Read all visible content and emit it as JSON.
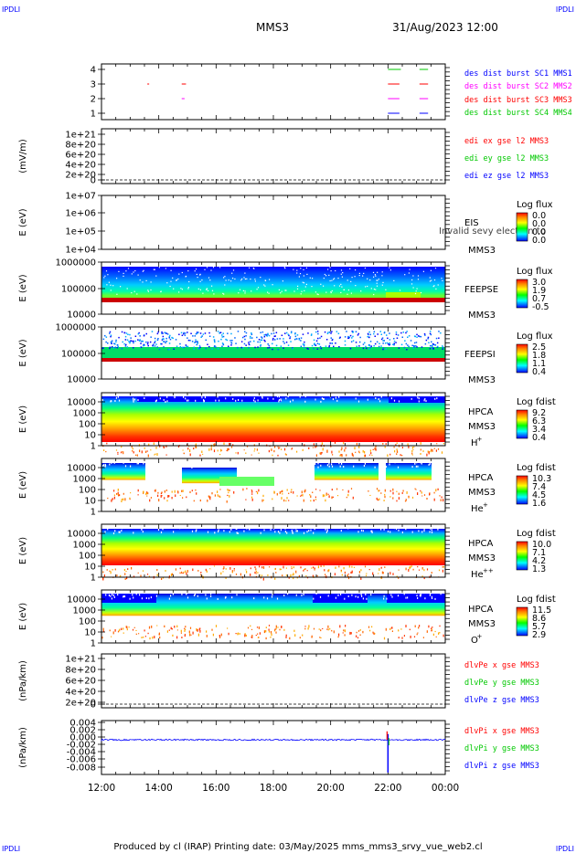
{
  "corner_tag": "IPDLI",
  "header": {
    "mission": "MMS3",
    "datetime": "31/Aug/2023 12:00"
  },
  "footer": "Produced by cl (IRAP)   Printing date: 03/May/2025   mms_mms3_srvy_vue_web2.cl",
  "x_ticks": [
    "12:00",
    "14:00",
    "16:00",
    "18:00",
    "20:00",
    "22:00",
    "00:00"
  ],
  "colors": {
    "blue": "#0000ff",
    "green": "#00c800",
    "red": "#ff0000",
    "magenta": "#ff00ff"
  },
  "chart_data": [
    {
      "id": "burst",
      "type": "scatter",
      "y_ticks": [
        "4",
        "3",
        "2",
        "1"
      ],
      "legend": [
        {
          "label": "des dist burst SC1 MMS1",
          "color": "#0000ff"
        },
        {
          "label": "des dist burst SC2 MMS2",
          "color": "#ff00ff"
        },
        {
          "label": "des dist burst SC3 MMS3",
          "color": "#ff0000"
        },
        {
          "label": "des dist burst SC4 MMS4",
          "color": "#00c800"
        }
      ],
      "segments": [
        {
          "sc": 4,
          "start_hour": 22.0,
          "end_hour": 22.45
        },
        {
          "sc": 4,
          "start_hour": 23.1,
          "end_hour": 23.4
        },
        {
          "sc": 3,
          "start_hour": 13.6,
          "end_hour": 13.65
        },
        {
          "sc": 3,
          "start_hour": 14.8,
          "end_hour": 14.95
        },
        {
          "sc": 3,
          "start_hour": 22.0,
          "end_hour": 22.4
        },
        {
          "sc": 3,
          "start_hour": 23.1,
          "end_hour": 23.4
        },
        {
          "sc": 2,
          "start_hour": 14.8,
          "end_hour": 14.9
        },
        {
          "sc": 2,
          "start_hour": 22.0,
          "end_hour": 22.4
        },
        {
          "sc": 2,
          "start_hour": 23.1,
          "end_hour": 23.4
        },
        {
          "sc": 1,
          "start_hour": 22.0,
          "end_hour": 22.4
        },
        {
          "sc": 1,
          "start_hour": 23.1,
          "end_hour": 23.4
        }
      ]
    },
    {
      "id": "edi",
      "type": "line",
      "ylabel": "(mV/m)",
      "y_ticks": [
        "1e+21",
        "8e+20",
        "6e+20",
        "4e+20",
        "2e+20",
        "0"
      ],
      "ylim": [
        0,
        1e+21
      ],
      "legend": [
        {
          "label": "edi ex gse l2 MMS3",
          "color": "#ff0000"
        },
        {
          "label": "edi ey gse l2 MMS3",
          "color": "#00c800"
        },
        {
          "label": "edi ez gse l2 MMS3",
          "color": "#0000ff"
        }
      ]
    },
    {
      "id": "eis",
      "type": "heatmap",
      "ylabel": "E (eV)",
      "y_ticks": [
        "1e+07",
        "1e+06",
        "1e+05",
        "1e+04"
      ],
      "instrument": [
        "EIS",
        "MMS3"
      ],
      "overlay_text": "Invalid sevy electron to",
      "colorbar": {
        "title": "Log flux",
        "ticks": [
          "0.0",
          "0.0",
          "0.0",
          "0.0"
        ]
      }
    },
    {
      "id": "feepse",
      "type": "heatmap",
      "ylabel": "E (eV)",
      "y_ticks": [
        "1000000",
        "100000",
        "10000"
      ],
      "instrument": [
        "FEEPSE",
        "MMS3"
      ],
      "colorbar": {
        "title": "Log flux",
        "ticks": [
          "3.0",
          "1.9",
          "0.7",
          "-0.5"
        ]
      }
    },
    {
      "id": "feepsi",
      "type": "heatmap",
      "ylabel": "E (eV)",
      "y_ticks": [
        "1000000",
        "100000",
        "10000"
      ],
      "instrument": [
        "FEEPSI",
        "MMS3"
      ],
      "colorbar": {
        "title": "Log flux",
        "ticks": [
          "2.5",
          "1.8",
          "1.1",
          "0.4"
        ]
      }
    },
    {
      "id": "hpca_h",
      "type": "heatmap",
      "ylabel": "E (eV)",
      "y_ticks": [
        "10000",
        "1000",
        "100",
        "10",
        "1"
      ],
      "instrument": [
        "HPCA",
        "MMS3"
      ],
      "species": "H",
      "charge": "+",
      "colorbar": {
        "title": "Log fdist",
        "ticks": [
          "9.2",
          "6.3",
          "3.4",
          "0.4"
        ]
      }
    },
    {
      "id": "hpca_he",
      "type": "heatmap",
      "ylabel": "E (eV)",
      "y_ticks": [
        "10000",
        "1000",
        "100",
        "10",
        "1"
      ],
      "instrument": [
        "HPCA",
        "MMS3"
      ],
      "species": "He",
      "charge": "+",
      "colorbar": {
        "title": "Log fdist",
        "ticks": [
          "10.3",
          "7.4",
          "4.5",
          "1.6"
        ]
      }
    },
    {
      "id": "hpca_hepp",
      "type": "heatmap",
      "ylabel": "E (eV)",
      "y_ticks": [
        "10000",
        "1000",
        "100",
        "10",
        "1"
      ],
      "instrument": [
        "HPCA",
        "MMS3"
      ],
      "species": "He",
      "charge": "++",
      "colorbar": {
        "title": "Log fdist",
        "ticks": [
          "10.0",
          "7.1",
          "4.2",
          "1.3"
        ]
      }
    },
    {
      "id": "hpca_o",
      "type": "heatmap",
      "ylabel": "E (eV)",
      "y_ticks": [
        "10000",
        "1000",
        "100",
        "10",
        "1"
      ],
      "instrument": [
        "HPCA",
        "MMS3"
      ],
      "species": "O",
      "charge": "+",
      "colorbar": {
        "title": "Log fdist",
        "ticks": [
          "11.5",
          "8.6",
          "5.7",
          "2.9"
        ]
      }
    },
    {
      "id": "divpe",
      "type": "line",
      "ylabel": "(nPa/km)",
      "y_ticks": [
        "1e+21",
        "8e+20",
        "6e+20",
        "4e+20",
        "2e+20",
        "0"
      ],
      "ylim": [
        0,
        1e+21
      ],
      "legend": [
        {
          "label": "dlvPe x gse MMS3",
          "color": "#ff0000"
        },
        {
          "label": "dlvPe y gse MMS3",
          "color": "#00c800"
        },
        {
          "label": "dlvPe z gse MMS3",
          "color": "#0000ff"
        }
      ]
    },
    {
      "id": "divpi",
      "type": "line",
      "ylabel": "(nPa/km)",
      "y_ticks": [
        "0.004",
        "0.002",
        "0.000",
        "-0.002",
        "-0.004",
        "-0.006",
        "-0.008"
      ],
      "ylim": [
        -0.009,
        0.005
      ],
      "legend": [
        {
          "label": "dlvPi x gse MMS3",
          "color": "#ff0000"
        },
        {
          "label": "dlvPi y gse MMS3",
          "color": "#00c800"
        },
        {
          "label": "dlvPi z gse MMS3",
          "color": "#0000ff"
        }
      ],
      "spike": {
        "hour": 22.0,
        "min": -0.0085,
        "max": 0.0015
      }
    }
  ]
}
